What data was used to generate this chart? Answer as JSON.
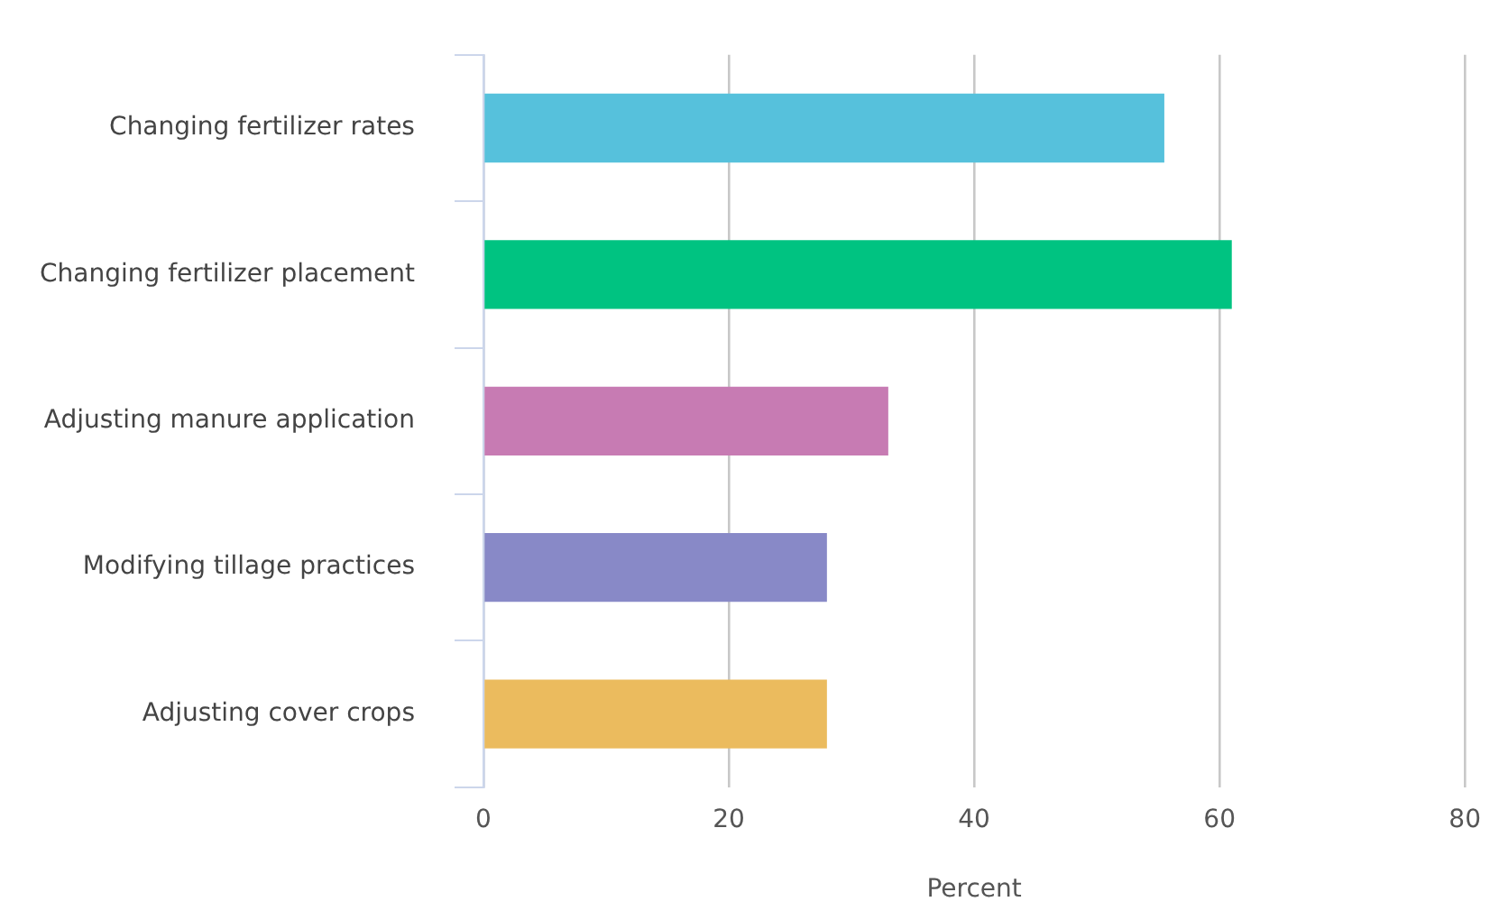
{
  "chart_data": {
    "type": "bar",
    "orientation": "horizontal",
    "categories": [
      "Changing fertilizer rates",
      "Changing fertilizer placement",
      "Adjusting manure application",
      "Modifying tillage practices",
      "Adjusting cover crops"
    ],
    "values": [
      55.5,
      61,
      33,
      28,
      28
    ],
    "colors": [
      "#56c1dc",
      "#00c381",
      "#c77bb3",
      "#8889c7",
      "#ebbb5e"
    ],
    "xlabel": "Percent",
    "xlim": [
      0,
      80
    ],
    "xticks": [
      0,
      20,
      40,
      60,
      80
    ],
    "grid": "x",
    "legend": false
  }
}
